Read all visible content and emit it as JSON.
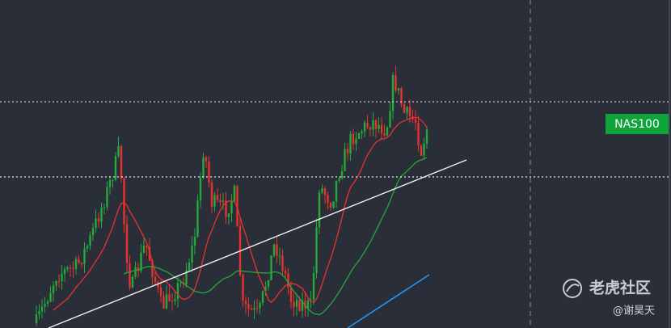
{
  "symbol_label": "NAS100",
  "watermark": {
    "brand": "老虎社区",
    "author": "@谢昊天"
  }
}
